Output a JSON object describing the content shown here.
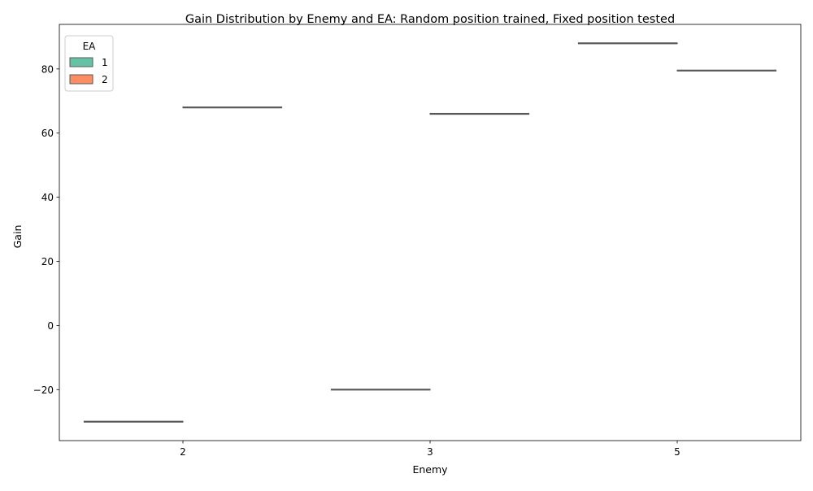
{
  "chart_data": {
    "type": "box",
    "title": "Gain Distribution by Enemy and EA: Random position trained, Fixed position tested",
    "xlabel": "Enemy",
    "ylabel": "Gain",
    "categories": [
      "2",
      "3",
      "5"
    ],
    "ylim": [
      -35.9,
      93.9
    ],
    "yticks": [
      -20,
      0,
      20,
      40,
      60,
      80
    ],
    "ytick_labels": [
      "−20",
      "0",
      "20",
      "40",
      "60",
      "80"
    ],
    "grid": false,
    "legend": {
      "title": "EA",
      "placement": "top-left"
    },
    "series": [
      {
        "name": "1",
        "color": "#66c2a5",
        "values": [
          -30,
          -20,
          88
        ]
      },
      {
        "name": "2",
        "color": "#fc8d62",
        "values": [
          68,
          66,
          79.5
        ]
      }
    ],
    "line_color": "#595959"
  }
}
